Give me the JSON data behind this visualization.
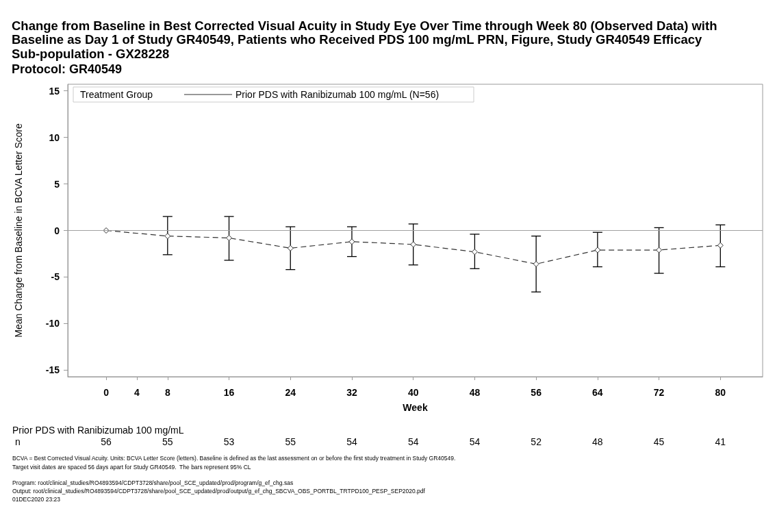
{
  "chart_data": {
    "type": "line",
    "title": "Change from Baseline in Best Corrected Visual Acuity in Study Eye Over Time through Week 80 (Observed Data) with Baseline as Day 1 of Study GR40549, Patients who Received PDS 100 mg/mL PRN, Figure, Study GR40549 Efficacy Sub-population - GX28228",
    "subtitle": "Protocol: GR40549",
    "xlabel": "Week",
    "ylabel": "Mean Change from Baseline in BCVA Letter Score",
    "legend_title": "Treatment Group",
    "legend": "top left",
    "x": [
      0,
      8,
      16,
      24,
      32,
      40,
      48,
      56,
      64,
      72,
      80
    ],
    "series": [
      {
        "name": "Prior PDS with Ranibizumab 100 mg/mL (N=56)",
        "color": "#333333",
        "values": [
          0,
          -0.6,
          -0.8,
          -1.9,
          -1.2,
          -1.5,
          -2.3,
          -3.6,
          -2.1,
          -2.1,
          -1.6
        ],
        "errors": [
          null,
          [
            -2.6,
            1.5
          ],
          [
            -3.2,
            1.5
          ],
          [
            -4.2,
            0.4
          ],
          [
            -2.8,
            0.4
          ],
          [
            -3.7,
            0.7
          ],
          [
            -4.1,
            -0.4
          ],
          [
            -6.6,
            -0.6
          ],
          [
            -3.9,
            -0.2
          ],
          [
            -4.6,
            0.3
          ],
          [
            -3.9,
            0.6
          ]
        ]
      }
    ],
    "marker": "diamond",
    "line_style": "dashed",
    "xlim": [
      -5,
      85.5
    ],
    "xticks": [
      0,
      4,
      8,
      16,
      24,
      32,
      40,
      48,
      56,
      64,
      72,
      80
    ],
    "ylim": [
      -15.7,
      15.7
    ],
    "yticks": [
      -15,
      -10,
      -5,
      0,
      5,
      10,
      15
    ],
    "grid": false,
    "ref_lines": [
      {
        "axis": "y",
        "value": 0,
        "color": "#a0a0a0"
      }
    ],
    "annotations": [
      "Prior PDS with Ranibizumab 100 mg/mL",
      "n",
      "56",
      "55",
      "53",
      "55",
      "54",
      "54",
      "54",
      "52",
      "48",
      "45",
      "41",
      "BCVA = Best Corrected Visual Acuity. Units: BCVA Letter Score (letters). Baseline is defined as the last assessment on or before the first study treatment in Study GR40549.",
      "Target visit dates are spaced 56 days apart for Study GR40549.  The bars represent 95% CL",
      "Program: root/clinical_studies/RO4893594/CDPT3728/share/pool_SCE_updated/prod/program/g_ef_chg.sas",
      "Output: root/clinical_studies/RO4893594/CDPT3728/share/pool_SCE_updated/prod/output/g_ef_chg_SBCVA_OBS_PORTBL_TRTPD100_PESP_SEP2020.pdf",
      "01DEC2020 23:23"
    ]
  }
}
